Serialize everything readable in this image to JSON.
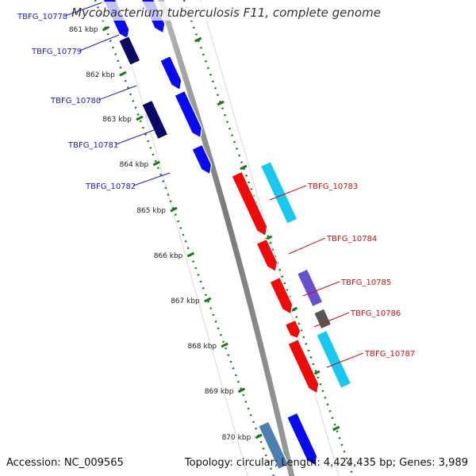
{
  "title": "Mycobacterium tuberculosis F11, complete genome",
  "accession": "Accession: NC_009565",
  "summary": "Topology: circular; Length: 4,424,435 bp; Genes: 3,989",
  "ruler_labels": [
    "861 kbp",
    "862 kbp",
    "863 kbp",
    "864 kbp",
    "865 kbp",
    "866 kbp",
    "867 kbp",
    "868 kbp",
    "869 kbp",
    "870 kbp"
  ],
  "colors": {
    "left_labels": "#1a1acc",
    "right_labels": "#cc1111",
    "backbone": "#888888",
    "ruler": "#1a7a1a",
    "blue": "#0a0aee",
    "navy": "#0a0a66",
    "red": "#ee0a0a",
    "cyan": "#18c8ee",
    "purple": "#6a4fcc",
    "gray": "#555555",
    "steel": "#4a7fb0"
  },
  "genes_left": [
    "TBFG_10778",
    "TBFG_10779",
    "TBFG_10780",
    "TBFG_10781",
    "TBFG_10782"
  ],
  "genes_right": [
    "TBFG_10783",
    "TBFG_10784",
    "TBFG_10785",
    "TBFG_10786",
    "TBFG_10787"
  ]
}
